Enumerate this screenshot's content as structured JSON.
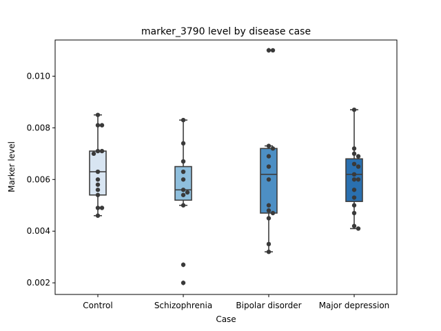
{
  "chart_data": {
    "type": "box",
    "title": "marker_3790 level by disease case",
    "xlabel": "Case",
    "ylabel": "Marker level",
    "ylim": [
      0.00155,
      0.0114
    ],
    "yticks": [
      0.002,
      0.004,
      0.006,
      0.008,
      0.01
    ],
    "ytick_labels": [
      "0.002",
      "0.004",
      "0.006",
      "0.008",
      "0.010"
    ],
    "grid": false,
    "categories": [
      "Control",
      "Schizophrenia",
      "Bipolar disorder",
      "Major depression"
    ],
    "colors": [
      "#d8e5f2",
      "#8fbfdd",
      "#4d8fc4",
      "#2a70b0"
    ],
    "point_color": "#3a3a3a",
    "boxes": [
      {
        "whisker_low": 0.0046,
        "q1": 0.0054,
        "median": 0.0063,
        "q3": 0.0071,
        "whisker_high": 0.0085,
        "fliers": []
      },
      {
        "whisker_low": 0.005,
        "q1": 0.0052,
        "median": 0.0056,
        "q3": 0.0065,
        "whisker_high": 0.0083,
        "fliers": [
          0.0027,
          0.002
        ]
      },
      {
        "whisker_low": 0.0032,
        "q1": 0.0047,
        "median": 0.0062,
        "q3": 0.0072,
        "whisker_high": 0.0073,
        "fliers": [
          0.011
        ]
      },
      {
        "whisker_low": 0.0041,
        "q1": 0.00515,
        "median": 0.0062,
        "q3": 0.0068,
        "whisker_high": 0.0087,
        "fliers": []
      }
    ],
    "points": [
      [
        0.0085,
        0.0081,
        0.0081,
        0.0071,
        0.0071,
        0.007,
        0.0063,
        0.006,
        0.0058,
        0.0056,
        0.0054,
        0.0049,
        0.0049,
        0.0046
      ],
      [
        0.0083,
        0.0074,
        0.0067,
        0.0063,
        0.006,
        0.0056,
        0.0055,
        0.0054,
        0.005,
        0.0027,
        0.002
      ],
      [
        0.011,
        0.011,
        0.0073,
        0.0072,
        0.0069,
        0.0065,
        0.006,
        0.005,
        0.0048,
        0.0047,
        0.0045,
        0.0035,
        0.0032
      ],
      [
        0.0087,
        0.0072,
        0.007,
        0.0069,
        0.0066,
        0.0065,
        0.0062,
        0.006,
        0.006,
        0.0056,
        0.0053,
        0.005,
        0.0047,
        0.0042,
        0.0041
      ]
    ]
  }
}
